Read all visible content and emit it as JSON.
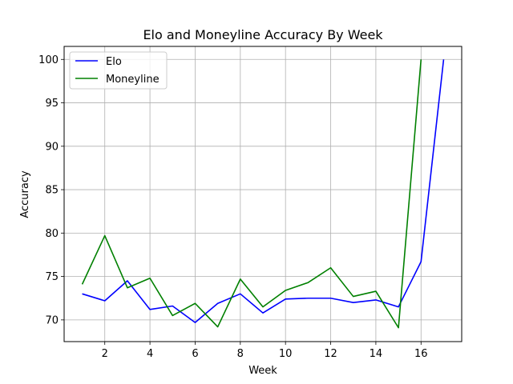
{
  "chart_data": {
    "type": "line",
    "title": "Elo and Moneyline Accuracy By Week",
    "xlabel": "Week",
    "ylabel": "Accuracy",
    "xlim": [
      0.2,
      17.8
    ],
    "ylim": [
      67.5,
      101.5
    ],
    "xticks": [
      2,
      4,
      6,
      8,
      10,
      12,
      14,
      16
    ],
    "yticks": [
      70,
      75,
      80,
      85,
      90,
      95,
      100
    ],
    "grid": true,
    "legend_position": "top-left",
    "series": [
      {
        "name": "Elo",
        "color": "#0000ff",
        "x": [
          1,
          2,
          3,
          4,
          5,
          6,
          7,
          8,
          9,
          10,
          11,
          12,
          13,
          14,
          15,
          16,
          17
        ],
        "values": [
          73.0,
          72.2,
          74.5,
          71.2,
          71.6,
          69.7,
          71.9,
          73.0,
          70.8,
          72.4,
          72.5,
          72.5,
          72.0,
          72.3,
          71.5,
          76.7,
          100.0
        ]
      },
      {
        "name": "Moneyline",
        "color": "#008000",
        "x": [
          1,
          2,
          3,
          4,
          5,
          6,
          7,
          8,
          9,
          10,
          11,
          12,
          13,
          14,
          15,
          16
        ],
        "values": [
          74.1,
          79.7,
          73.7,
          74.8,
          70.5,
          71.9,
          69.2,
          74.7,
          71.5,
          73.4,
          74.3,
          76.0,
          72.7,
          73.3,
          69.1,
          100.0
        ]
      }
    ]
  }
}
